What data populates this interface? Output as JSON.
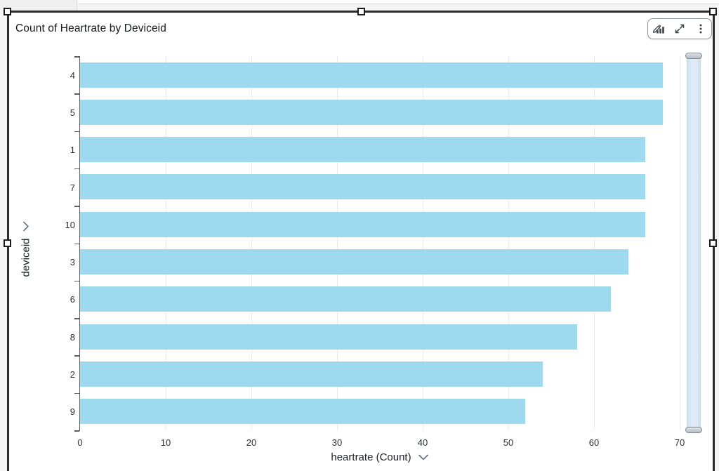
{
  "widget": {
    "title": "Count of Heartrate by Deviceid"
  },
  "toolbar": {
    "icons": [
      "edit-visual-icon",
      "maximize-icon",
      "menu-options-icon"
    ]
  },
  "chart_data": {
    "type": "bar",
    "orientation": "horizontal",
    "title": "Count of Heartrate by Deviceid",
    "categories": [
      "4",
      "5",
      "1",
      "7",
      "10",
      "3",
      "6",
      "8",
      "2",
      "9"
    ],
    "values": [
      68,
      68,
      66,
      66,
      66,
      64,
      62,
      58,
      54,
      52
    ],
    "xlabel": "heartrate (Count)",
    "ylabel": "deviceid",
    "xlim": [
      0,
      70
    ],
    "x_ticks": [
      0,
      10,
      20,
      30,
      40,
      50,
      60,
      70
    ],
    "grid": "vertical-gridlines-only",
    "legend": "none",
    "bar_color": "#9DDAEF"
  },
  "colors": {
    "bar": "#9DDAEF",
    "gridline": "#ECECEC",
    "axis_line": "#5B5F66",
    "selection_border": "#2B2B2B",
    "scrollbar_track": "#DEEBF7",
    "scrollbar_handle": "#C0C7CE"
  }
}
